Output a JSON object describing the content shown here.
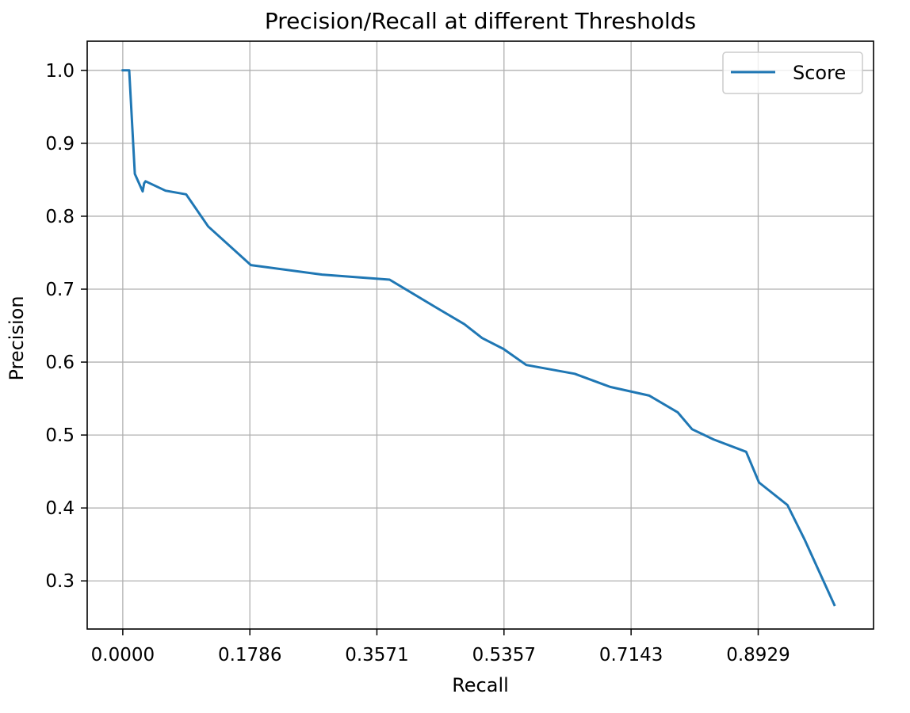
{
  "chart_data": {
    "type": "line",
    "title": "Precision/Recall at different Thresholds",
    "xlabel": "Recall",
    "ylabel": "Precision",
    "xlim": [
      -0.05,
      1.055
    ],
    "ylim": [
      0.234,
      1.04
    ],
    "xticks": [
      0.0,
      0.1786,
      0.3571,
      0.5357,
      0.7143,
      0.8929
    ],
    "xtick_labels": [
      "0.0000",
      "0.1786",
      "0.3571",
      "0.5357",
      "0.7143",
      "0.8929"
    ],
    "yticks": [
      0.3,
      0.4,
      0.5,
      0.6,
      0.7,
      0.8,
      0.9,
      1.0
    ],
    "ytick_labels": [
      "0.3",
      "0.4",
      "0.5",
      "0.6",
      "0.7",
      "0.8",
      "0.9",
      "1.0"
    ],
    "grid": true,
    "legend_position": "top-right",
    "series": [
      {
        "name": "Score",
        "color": "#1f77b4",
        "x": [
          0.0,
          0.009,
          0.017,
          0.028,
          0.03,
          0.032,
          0.06,
          0.089,
          0.12,
          0.18,
          0.28,
          0.375,
          0.44,
          0.48,
          0.505,
          0.535,
          0.567,
          0.635,
          0.685,
          0.74,
          0.78,
          0.8,
          0.83,
          0.876,
          0.894,
          0.934,
          0.958,
          1.0
        ],
        "y": [
          1.0,
          1.0,
          0.858,
          0.834,
          0.845,
          0.848,
          0.835,
          0.83,
          0.786,
          0.733,
          0.72,
          0.713,
          0.675,
          0.652,
          0.633,
          0.618,
          0.596,
          0.584,
          0.566,
          0.554,
          0.531,
          0.508,
          0.494,
          0.477,
          0.435,
          0.404,
          0.357,
          0.267
        ]
      }
    ]
  }
}
